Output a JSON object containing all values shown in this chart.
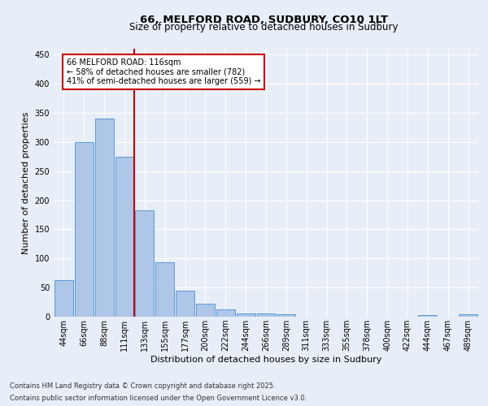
{
  "title_line1": "66, MELFORD ROAD, SUDBURY, CO10 1LT",
  "title_line2": "Size of property relative to detached houses in Sudbury",
  "xlabel": "Distribution of detached houses by size in Sudbury",
  "ylabel": "Number of detached properties",
  "footnote1": "Contains HM Land Registry data © Crown copyright and database right 2025.",
  "footnote2": "Contains public sector information licensed under the Open Government Licence v3.0.",
  "bar_labels": [
    "44sqm",
    "66sqm",
    "88sqm",
    "111sqm",
    "133sqm",
    "155sqm",
    "177sqm",
    "200sqm",
    "222sqm",
    "244sqm",
    "266sqm",
    "289sqm",
    "311sqm",
    "333sqm",
    "355sqm",
    "378sqm",
    "400sqm",
    "422sqm",
    "444sqm",
    "467sqm",
    "489sqm"
  ],
  "bar_values": [
    63,
    300,
    340,
    275,
    183,
    93,
    44,
    23,
    13,
    6,
    5,
    4,
    0,
    0,
    0,
    0,
    0,
    0,
    3,
    0,
    4
  ],
  "bar_color": "#aec6e8",
  "bar_edge_color": "#5b9bd5",
  "background_color": "#e8eef7",
  "grid_color": "#ffffff",
  "vline_color": "#cc0000",
  "annotation_title": "66 MELFORD ROAD: 116sqm",
  "annotation_line2": "← 58% of detached houses are smaller (782)",
  "annotation_line3": "41% of semi-detached houses are larger (559) →",
  "annotation_box_color": "#ffffff",
  "annotation_box_edge_color": "#cc0000",
  "ylim": [
    0,
    460
  ],
  "yticks": [
    0,
    50,
    100,
    150,
    200,
    250,
    300,
    350,
    400,
    450
  ],
  "title1_fontsize": 9.5,
  "title2_fontsize": 8.5,
  "axis_label_fontsize": 8,
  "tick_fontsize": 7,
  "annotation_fontsize": 7,
  "footnote_fontsize": 6
}
